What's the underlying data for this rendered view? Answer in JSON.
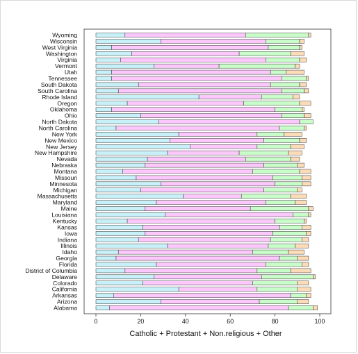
{
  "chart_data": {
    "type": "bar",
    "orientation": "horizontal",
    "stacked": true,
    "xlabel": "Catholic + Protestant + Non.religious + Other",
    "xlim": [
      0,
      100
    ],
    "xticks": [
      0,
      20,
      40,
      60,
      80,
      100
    ],
    "grid": false,
    "legend": "none",
    "categories": [
      "Alabama",
      "Arizona",
      "Arkansas",
      "California",
      "Colorado",
      "Delaware",
      "District of Columbia",
      "Florida",
      "Georgia",
      "Idaho",
      "Illinois",
      "Indiana",
      "Iowa",
      "Kansas",
      "Kentucky",
      "Louisiana",
      "Maine",
      "Maryland",
      "Massachusetts",
      "Michigan",
      "Minnesota",
      "Missouri",
      "Montana",
      "Nebraska",
      "Nevada",
      "New Hampshire",
      "New Jersey",
      "New Mexico",
      "New York",
      "North Carolina",
      "North Dakota",
      "Ohio",
      "Oklahoma",
      "Oregon",
      "Rhode Island",
      "South Carolina",
      "South Dakota",
      "Tennessee",
      "Utah",
      "Vermont",
      "Virginia",
      "Washington",
      "West Virginia",
      "Wisconsin",
      "Wyoming"
    ],
    "series": [
      {
        "name": "Catholic",
        "color": "#c8f0f8",
        "values": [
          6,
          29,
          8,
          37,
          21,
          26,
          13,
          27,
          9,
          10,
          32,
          19,
          22,
          21,
          14,
          31,
          22,
          27,
          39,
          20,
          29,
          18,
          12,
          22,
          23,
          32,
          42,
          33,
          37,
          9,
          28,
          20,
          7,
          14,
          46,
          10,
          19,
          7,
          7,
          26,
          11,
          16,
          7,
          29,
          13
        ]
      },
      {
        "name": "Protestant",
        "color": "#fcc8fc",
        "values": [
          80,
          44,
          79,
          35,
          49,
          48,
          59,
          49,
          73,
          60,
          45,
          59,
          57,
          61,
          66,
          57,
          47,
          49,
          26,
          55,
          51,
          61,
          58,
          53,
          44,
          32,
          30,
          42,
          35,
          73,
          63,
          63,
          73,
          52,
          28,
          73,
          59,
          76,
          71,
          29,
          65,
          48,
          70,
          47,
          54
        ]
      },
      {
        "name": "Non.religious",
        "color": "#c8fcc8",
        "values": [
          11,
          17,
          7,
          18,
          20,
          23,
          15,
          16,
          8,
          16,
          12,
          14,
          15,
          10,
          13,
          7,
          26,
          13,
          22,
          15,
          12,
          13,
          21,
          15,
          20,
          22,
          15,
          16,
          12,
          11,
          6,
          10,
          12,
          25,
          14,
          10,
          13,
          11,
          7,
          34,
          15,
          23,
          14,
          15,
          28
        ]
      },
      {
        "name": "Other",
        "color": "#fcdcb8",
        "values": [
          2,
          5,
          2,
          6,
          5,
          1,
          9,
          3,
          5,
          7,
          6,
          3,
          2,
          4,
          1,
          1,
          2,
          5,
          7,
          2,
          4,
          4,
          5,
          3,
          4,
          6,
          6,
          3,
          8,
          1,
          0,
          3,
          1,
          5,
          3,
          2,
          3,
          1,
          8,
          2,
          3,
          6,
          1,
          2,
          1
        ]
      }
    ]
  }
}
